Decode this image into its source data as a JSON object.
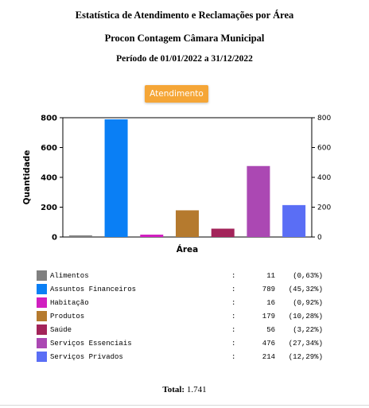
{
  "header": {
    "title": "Estatística de Atendimento e Reclamações por Área",
    "subtitle": "Procon Contagem Câmara Municipal",
    "period": "Período de 01/01/2022 a 31/12/2022"
  },
  "tab": {
    "label": "Atendimento",
    "color": "#f5a637"
  },
  "chart_data": {
    "type": "bar",
    "xlabel": "Área",
    "ylabel": "Quantidade",
    "ylim": [
      0,
      800
    ],
    "yticks": [
      0,
      200,
      400,
      600,
      800
    ],
    "grid": false,
    "categories": [
      "Alimentos",
      "Assuntos Financeiros",
      "Habitação",
      "Produtos",
      "Saúde",
      "Serviços Essenciais",
      "Serviços Privados"
    ],
    "values": [
      11,
      789,
      16,
      179,
      56,
      476,
      214
    ],
    "colors": [
      "#808080",
      "#0a7ff5",
      "#d11fc0",
      "#b57a2e",
      "#a3245a",
      "#ab48b3",
      "#5a6ef5"
    ]
  },
  "legend": [
    {
      "name": "Alimentos",
      "colon": ":",
      "value": "11",
      "percent": "(0,63%)"
    },
    {
      "name": "Assuntos Financeiros",
      "colon": ":",
      "value": "789",
      "percent": "(45,32%)"
    },
    {
      "name": "Habitação",
      "colon": ":",
      "value": "16",
      "percent": "(0,92%)"
    },
    {
      "name": "Produtos",
      "colon": ":",
      "value": "179",
      "percent": "(10,28%)"
    },
    {
      "name": "Saúde",
      "colon": ":",
      "value": "56",
      "percent": "(3,22%)"
    },
    {
      "name": "Serviços Essenciais",
      "colon": ":",
      "value": "476",
      "percent": "(27,34%)"
    },
    {
      "name": "Serviços Privados",
      "colon": ":",
      "value": "214",
      "percent": "(12,29%)"
    }
  ],
  "total": {
    "label": "Total:",
    "value": "1.741"
  }
}
